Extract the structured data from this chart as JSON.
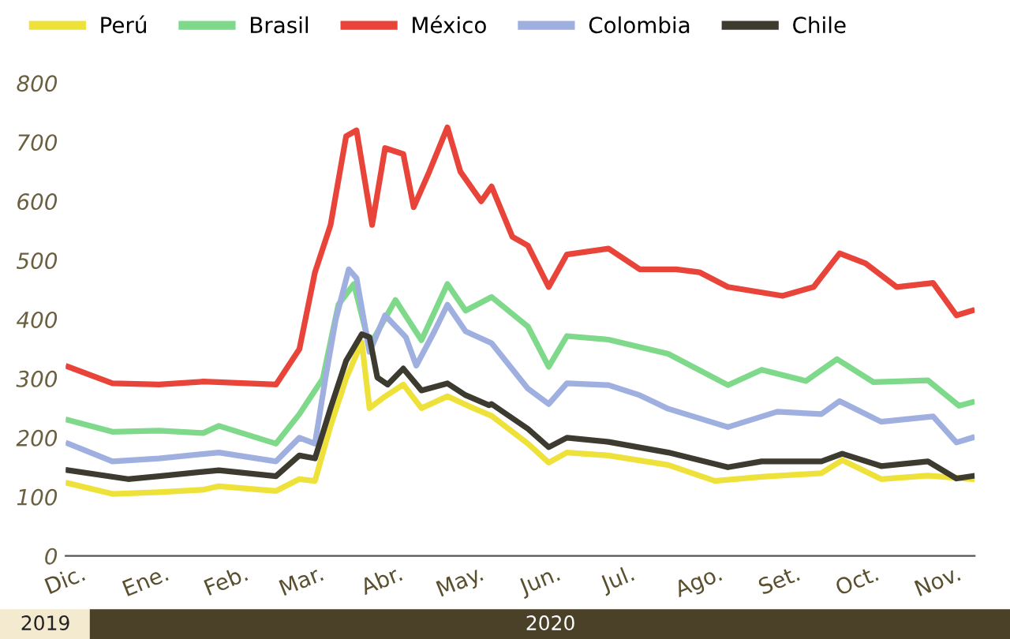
{
  "chart_data": {
    "type": "line",
    "xlim": [
      "2019-12-01",
      "2020-11-15"
    ],
    "xticks": [
      {
        "value": "2019-12-01",
        "label": "Dic."
      },
      {
        "value": "2020-01-01",
        "label": "Ene."
      },
      {
        "value": "2020-02-01",
        "label": "Feb."
      },
      {
        "value": "2020-03-01",
        "label": "Mar."
      },
      {
        "value": "2020-04-01",
        "label": "Abr."
      },
      {
        "value": "2020-05-01",
        "label": "May."
      },
      {
        "value": "2020-06-01",
        "label": "Jun."
      },
      {
        "value": "2020-07-01",
        "label": "Jul."
      },
      {
        "value": "2020-08-01",
        "label": "Ago."
      },
      {
        "value": "2020-09-01",
        "label": "Set."
      },
      {
        "value": "2020-10-01",
        "label": "Oct."
      },
      {
        "value": "2020-11-01",
        "label": "Nov."
      }
    ],
    "ylim": [
      0,
      800
    ],
    "yticks": [
      0,
      100,
      200,
      300,
      400,
      500,
      600,
      700,
      800
    ],
    "grid": false,
    "legend": "top",
    "marker": "none",
    "line_style": "solid",
    "annotations": [
      "2019",
      "2020"
    ],
    "series": [
      {
        "name": "Perú",
        "color": "#eee23a",
        "x": [
          "2019-12-02",
          "2019-12-19",
          "2020-01-06",
          "2020-01-23",
          "2020-01-29",
          "2020-02-20",
          "2020-02-29",
          "2020-03-06",
          "2020-03-12",
          "2020-03-18",
          "2020-03-24",
          "2020-03-27",
          "2020-04-02",
          "2020-04-09",
          "2020-04-16",
          "2020-04-26",
          "2020-05-06",
          "2020-05-13",
          "2020-05-27",
          "2020-06-04",
          "2020-06-11",
          "2020-06-27",
          "2020-07-20",
          "2020-08-07",
          "2020-08-25",
          "2020-09-17",
          "2020-09-25",
          "2020-10-10",
          "2020-10-28",
          "2020-11-14"
        ],
        "values": [
          123,
          105,
          108,
          112,
          118,
          110,
          130,
          127,
          220,
          300,
          362,
          250,
          270,
          290,
          250,
          270,
          250,
          237,
          190,
          158,
          175,
          170,
          154,
          127,
          134,
          140,
          162,
          130,
          136,
          130
        ]
      },
      {
        "name": "Brasil",
        "color": "#7fd98a",
        "x": [
          "2019-12-02",
          "2019-12-19",
          "2020-01-06",
          "2020-01-23",
          "2020-01-29",
          "2020-02-20",
          "2020-02-29",
          "2020-03-09",
          "2020-03-15",
          "2020-03-21",
          "2020-03-27",
          "2020-04-06",
          "2020-04-16",
          "2020-04-26",
          "2020-05-03",
          "2020-05-13",
          "2020-05-27",
          "2020-06-04",
          "2020-06-11",
          "2020-06-27",
          "2020-07-20",
          "2020-08-12",
          "2020-08-25",
          "2020-09-11",
          "2020-09-23",
          "2020-10-07",
          "2020-10-28",
          "2020-11-09",
          "2020-11-14"
        ],
        "values": [
          230,
          210,
          212,
          208,
          220,
          190,
          240,
          300,
          425,
          460,
          355,
          433,
          365,
          460,
          415,
          438,
          388,
          320,
          372,
          366,
          342,
          289,
          315,
          296,
          333,
          294,
          297,
          254,
          260
        ]
      },
      {
        "name": "México",
        "color": "#e8443a",
        "x": [
          "2019-12-02",
          "2019-12-19",
          "2020-01-06",
          "2020-01-23",
          "2020-02-20",
          "2020-02-29",
          "2020-03-06",
          "2020-03-12",
          "2020-03-18",
          "2020-03-22",
          "2020-03-28",
          "2020-04-02",
          "2020-04-09",
          "2020-04-13",
          "2020-04-19",
          "2020-04-26",
          "2020-05-01",
          "2020-05-09",
          "2020-05-13",
          "2020-05-21",
          "2020-05-27",
          "2020-06-04",
          "2020-06-11",
          "2020-06-27",
          "2020-07-09",
          "2020-07-23",
          "2020-08-01",
          "2020-08-12",
          "2020-09-02",
          "2020-09-14",
          "2020-09-24",
          "2020-10-04",
          "2020-10-16",
          "2020-10-30",
          "2020-11-08",
          "2020-11-14"
        ],
        "values": [
          320,
          292,
          290,
          295,
          290,
          350,
          480,
          560,
          710,
          720,
          560,
          690,
          680,
          590,
          650,
          725,
          650,
          600,
          625,
          540,
          525,
          455,
          510,
          520,
          485,
          485,
          480,
          455,
          440,
          455,
          512,
          495,
          455,
          462,
          407,
          415
        ]
      },
      {
        "name": "Colombia",
        "color": "#9fb0e0",
        "x": [
          "2019-12-02",
          "2019-12-19",
          "2020-01-06",
          "2020-01-29",
          "2020-02-20",
          "2020-02-29",
          "2020-03-06",
          "2020-03-10",
          "2020-03-14",
          "2020-03-19",
          "2020-03-22",
          "2020-03-27",
          "2020-04-02",
          "2020-04-10",
          "2020-04-14",
          "2020-04-21",
          "2020-04-26",
          "2020-05-03",
          "2020-05-13",
          "2020-05-27",
          "2020-06-04",
          "2020-06-11",
          "2020-06-27",
          "2020-07-09",
          "2020-07-20",
          "2020-08-12",
          "2020-08-31",
          "2020-09-17",
          "2020-09-24",
          "2020-10-10",
          "2020-10-30",
          "2020-11-08",
          "2020-11-14"
        ],
        "values": [
          190,
          160,
          165,
          175,
          160,
          200,
          190,
          300,
          400,
          485,
          470,
          345,
          407,
          370,
          322,
          380,
          425,
          380,
          360,
          283,
          257,
          292,
          289,
          272,
          249,
          218,
          244,
          240,
          262,
          227,
          236,
          192,
          200
        ]
      },
      {
        "name": "Chile",
        "color": "#3d3a30",
        "x": [
          "2019-12-02",
          "2019-12-25",
          "2020-01-06",
          "2020-01-29",
          "2020-02-20",
          "2020-02-29",
          "2020-03-06",
          "2020-03-12",
          "2020-03-18",
          "2020-03-24",
          "2020-03-27",
          "2020-03-30",
          "2020-04-03",
          "2020-04-09",
          "2020-04-16",
          "2020-04-26",
          "2020-05-03",
          "2020-05-12",
          "2020-05-13",
          "2020-05-27",
          "2020-06-04",
          "2020-06-11",
          "2020-06-27",
          "2020-07-20",
          "2020-08-12",
          "2020-08-25",
          "2020-09-17",
          "2020-09-25",
          "2020-10-10",
          "2020-10-28",
          "2020-11-08",
          "2020-11-14"
        ],
        "values": [
          145,
          130,
          135,
          145,
          135,
          170,
          165,
          250,
          330,
          375,
          370,
          302,
          290,
          317,
          280,
          292,
          272,
          255,
          257,
          215,
          184,
          200,
          193,
          175,
          150,
          160,
          160,
          173,
          152,
          160,
          131,
          135
        ]
      }
    ]
  }
}
